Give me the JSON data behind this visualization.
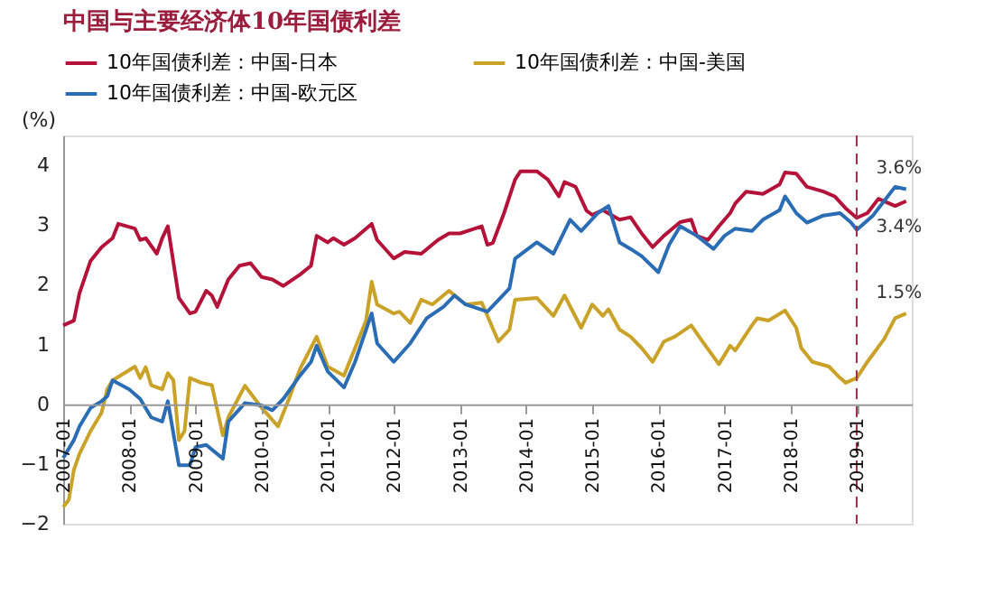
{
  "chart_data": {
    "type": "line",
    "title": "中国与主要经济体10年国债利差",
    "ylabel": "(%)",
    "xlim": [
      "2007-01",
      "2019-11"
    ],
    "xticks": [
      "2007-01",
      "2008-01",
      "2009-01",
      "2010-01",
      "2011-01",
      "2012-01",
      "2013-01",
      "2014-01",
      "2015-01",
      "2016-01",
      "2017-01",
      "2018-01",
      "2019-01"
    ],
    "ylim": [
      -2,
      4.5
    ],
    "yticks": [
      -2,
      -1,
      0,
      1,
      2,
      3,
      4
    ],
    "grid": false,
    "legend": "top left",
    "marker": "none",
    "line_style": "solid",
    "series": [
      {
        "name": "10年国债利差：中国-日本",
        "color": "#b5123a",
        "x": [
          "2007-01",
          "2007-03",
          "2007-04",
          "2007-06",
          "2007-08",
          "2007-10",
          "2007-11",
          "2008-02",
          "2008-03",
          "2008-04",
          "2008-06",
          "2008-07",
          "2008-08",
          "2008-10",
          "2008-12",
          "2009-01",
          "2009-03",
          "2009-04",
          "2009-05",
          "2009-07",
          "2009-09",
          "2009-11",
          "2010-01",
          "2010-03",
          "2010-05",
          "2010-08",
          "2010-10",
          "2010-11",
          "2011-01",
          "2011-02",
          "2011-04",
          "2011-06",
          "2011-09",
          "2011-10",
          "2012-01",
          "2012-03",
          "2012-06",
          "2012-09",
          "2012-11",
          "2013-01",
          "2013-05",
          "2013-06",
          "2013-07",
          "2013-09",
          "2013-11",
          "2013-12",
          "2014-03",
          "2014-05",
          "2014-07",
          "2014-08",
          "2014-10",
          "2014-12",
          "2015-01",
          "2015-03",
          "2015-06",
          "2015-08",
          "2015-10",
          "2015-12",
          "2016-02",
          "2016-05",
          "2016-07",
          "2016-08",
          "2016-10",
          "2016-12",
          "2017-02",
          "2017-03",
          "2017-05",
          "2017-08",
          "2017-11",
          "2017-12",
          "2018-02",
          "2018-04",
          "2018-07",
          "2018-09",
          "2018-11",
          "2019-01",
          "2019-03",
          "2019-05",
          "2019-08",
          "2019-10"
        ],
        "values": [
          1.32,
          1.4,
          1.86,
          2.4,
          2.63,
          2.78,
          3.02,
          2.94,
          2.75,
          2.78,
          2.52,
          2.78,
          2.98,
          1.78,
          1.52,
          1.55,
          1.9,
          1.82,
          1.63,
          2.09,
          2.32,
          2.36,
          2.13,
          2.09,
          1.98,
          2.17,
          2.32,
          2.82,
          2.71,
          2.78,
          2.67,
          2.78,
          3.02,
          2.75,
          2.44,
          2.55,
          2.52,
          2.75,
          2.86,
          2.86,
          2.98,
          2.67,
          2.7,
          3.2,
          3.76,
          3.9,
          3.9,
          3.76,
          3.48,
          3.72,
          3.64,
          3.24,
          3.17,
          3.25,
          3.09,
          3.13,
          2.86,
          2.63,
          2.82,
          3.05,
          3.09,
          2.82,
          2.75,
          2.98,
          3.2,
          3.36,
          3.56,
          3.52,
          3.68,
          3.88,
          3.86,
          3.64,
          3.56,
          3.48,
          3.28,
          3.12,
          3.2,
          3.44,
          3.32,
          3.4
        ]
      },
      {
        "name": "10年国债利差：中国-美国",
        "color": "#c9a227",
        "x": [
          "2007-01",
          "2007-02",
          "2007-03",
          "2007-04",
          "2007-06",
          "2007-08",
          "2007-09",
          "2007-10",
          "2008-02",
          "2008-03",
          "2008-04",
          "2008-05",
          "2008-07",
          "2008-08",
          "2008-09",
          "2008-10",
          "2008-11",
          "2008-12",
          "2009-02",
          "2009-04",
          "2009-06",
          "2009-07",
          "2009-10",
          "2010-01",
          "2010-04",
          "2010-06",
          "2010-08",
          "2010-11",
          "2011-01",
          "2011-04",
          "2011-06",
          "2011-08",
          "2011-09",
          "2011-10",
          "2012-01",
          "2012-02",
          "2012-04",
          "2012-06",
          "2012-08",
          "2012-11",
          "2013-02",
          "2013-05",
          "2013-08",
          "2013-10",
          "2013-11",
          "2014-03",
          "2014-06",
          "2014-08",
          "2014-11",
          "2015-01",
          "2015-03",
          "2015-04",
          "2015-06",
          "2015-08",
          "2015-10",
          "2015-12",
          "2016-02",
          "2016-04",
          "2016-07",
          "2016-09",
          "2016-12",
          "2017-02",
          "2017-03",
          "2017-06",
          "2017-07",
          "2017-09",
          "2017-12",
          "2018-02",
          "2018-03",
          "2018-05",
          "2018-08",
          "2018-10",
          "2018-11",
          "2019-01",
          "2019-03",
          "2019-06",
          "2019-08",
          "2019-10"
        ],
        "values": [
          -1.72,
          -1.6,
          -1.1,
          -0.83,
          -0.45,
          -0.14,
          0.25,
          0.4,
          0.63,
          0.44,
          0.62,
          0.32,
          0.25,
          0.52,
          0.4,
          -0.6,
          -0.45,
          0.44,
          0.36,
          0.32,
          -0.52,
          -0.22,
          0.31,
          -0.06,
          -0.37,
          0.09,
          0.59,
          1.13,
          0.63,
          0.48,
          0.94,
          1.4,
          2.05,
          1.67,
          1.52,
          1.55,
          1.36,
          1.75,
          1.67,
          1.9,
          1.67,
          1.7,
          1.05,
          1.25,
          1.75,
          1.78,
          1.48,
          1.82,
          1.28,
          1.67,
          1.48,
          1.59,
          1.25,
          1.13,
          0.94,
          0.71,
          1.05,
          1.13,
          1.32,
          1.05,
          0.67,
          0.98,
          0.9,
          1.32,
          1.44,
          1.4,
          1.57,
          1.28,
          0.94,
          0.71,
          0.63,
          0.44,
          0.36,
          0.44,
          0.71,
          1.09,
          1.44,
          1.52
        ]
      },
      {
        "name": "10年国债利差：中国-欧元区",
        "color": "#2a6db5",
        "x": [
          "2007-01",
          "2007-03",
          "2007-04",
          "2007-06",
          "2007-08",
          "2007-09",
          "2007-10",
          "2008-01",
          "2008-03",
          "2008-05",
          "2008-07",
          "2008-08",
          "2008-10",
          "2008-12",
          "2009-01",
          "2009-03",
          "2009-06",
          "2009-07",
          "2009-10",
          "2010-01",
          "2010-03",
          "2010-05",
          "2010-08",
          "2010-10",
          "2010-11",
          "2011-01",
          "2011-04",
          "2011-06",
          "2011-09",
          "2011-10",
          "2012-01",
          "2012-04",
          "2012-07",
          "2012-10",
          "2012-12",
          "2013-02",
          "2013-06",
          "2013-10",
          "2013-11",
          "2014-03",
          "2014-06",
          "2014-09",
          "2014-11",
          "2015-02",
          "2015-04",
          "2015-06",
          "2015-08",
          "2015-10",
          "2016-01",
          "2016-03",
          "2016-05",
          "2016-08",
          "2016-11",
          "2017-01",
          "2017-03",
          "2017-06",
          "2017-08",
          "2017-11",
          "2017-12",
          "2018-02",
          "2018-04",
          "2018-07",
          "2018-10",
          "2018-12",
          "2019-01",
          "2019-04",
          "2019-06",
          "2019-08",
          "2019-10"
        ],
        "values": [
          -0.9,
          -0.6,
          -0.37,
          -0.06,
          0.05,
          0.13,
          0.4,
          0.25,
          0.09,
          -0.22,
          -0.29,
          0.05,
          -1.02,
          -1.02,
          -0.72,
          -0.68,
          -0.91,
          -0.29,
          0.02,
          -0.02,
          -0.1,
          0.09,
          0.48,
          0.71,
          0.98,
          0.55,
          0.28,
          0.71,
          1.52,
          1.02,
          0.71,
          1.02,
          1.44,
          1.63,
          1.82,
          1.67,
          1.55,
          1.94,
          2.44,
          2.71,
          2.52,
          3.09,
          2.9,
          3.2,
          3.32,
          2.71,
          2.6,
          2.48,
          2.21,
          2.67,
          2.98,
          2.82,
          2.6,
          2.82,
          2.94,
          2.9,
          3.09,
          3.25,
          3.48,
          3.2,
          3.04,
          3.16,
          3.2,
          3.04,
          2.92,
          3.16,
          3.4,
          3.64,
          3.6
        ]
      }
    ],
    "ref_lines": [
      {
        "axis": "x",
        "value": "2019-01",
        "color": "#a0304a",
        "line_style": "dashed"
      }
    ],
    "annotations": [
      {
        "text": "3.6%",
        "x": "2019-10",
        "y": 3.6
      },
      {
        "text": "3.4%",
        "x": "2019-10",
        "y": 3.4
      },
      {
        "text": "1.5%",
        "x": "2019-10",
        "y": 1.5
      }
    ]
  }
}
